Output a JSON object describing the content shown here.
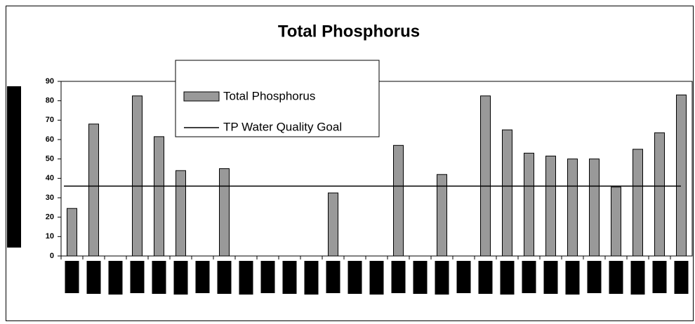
{
  "chart_data": {
    "type": "bar",
    "title": "Total Phosphorus",
    "categories": [
      null,
      null,
      null,
      null,
      null,
      null,
      null,
      null,
      null,
      null,
      null,
      null,
      null,
      null,
      null,
      null,
      null,
      null,
      null,
      null,
      null,
      null,
      null,
      null,
      null,
      null,
      null,
      null,
      null
    ],
    "series": [
      {
        "name": "Total Phosphorus",
        "color": "#999999",
        "values": [
          24.5,
          68,
          null,
          82.5,
          61.5,
          44,
          null,
          45,
          null,
          null,
          null,
          null,
          32.5,
          null,
          null,
          57,
          null,
          42,
          null,
          82.5,
          65,
          53,
          51.5,
          50,
          50,
          35.5,
          55,
          63.5,
          83
        ]
      }
    ],
    "reference_line": {
      "name": "TP Water Quality Goal",
      "value": 36,
      "color": "#000000"
    },
    "ylim": [
      0,
      90
    ],
    "yticks": [
      0,
      10,
      20,
      30,
      40,
      50,
      60,
      70,
      80,
      90
    ]
  }
}
